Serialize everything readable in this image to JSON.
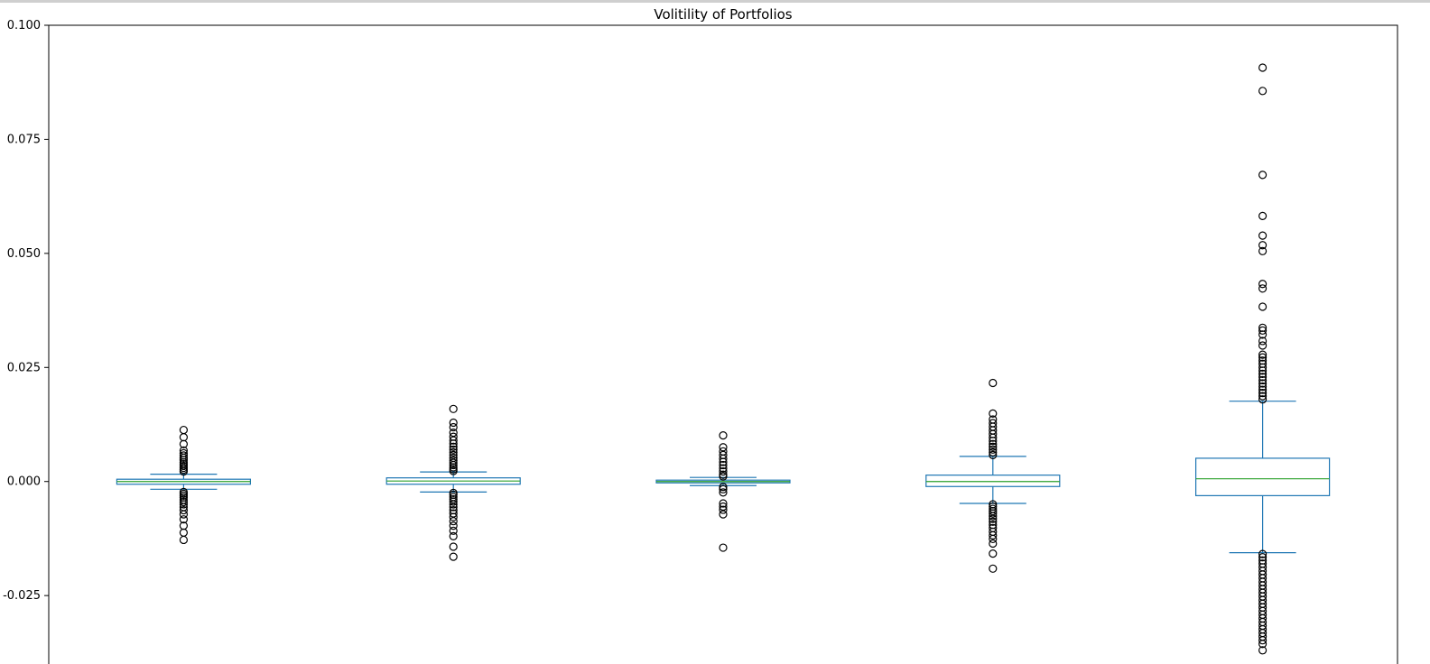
{
  "chart_data": {
    "type": "box",
    "title": "Volitility of Portfolios",
    "xlabel": "",
    "ylabel": "",
    "ylim": [
      -0.04,
      0.1
    ],
    "yticks": [
      {
        "value": 0.1,
        "label": "0.100"
      },
      {
        "value": 0.075,
        "label": "0.075"
      },
      {
        "value": 0.05,
        "label": "0.050"
      },
      {
        "value": 0.025,
        "label": "0.025"
      },
      {
        "value": 0.0,
        "label": "0.000"
      },
      {
        "value": -0.025,
        "label": "-0.025"
      }
    ],
    "grid": false,
    "colors": {
      "box": "#1f77b4",
      "median": "#2ca02c",
      "flier": "#000000",
      "axis": "#000000"
    },
    "boxes": [
      {
        "q1": -0.0006,
        "median": 0.0,
        "q3": 0.0005,
        "whisker_low": -0.0017,
        "whisker_high": 0.0016,
        "outliers": [
          0.0113,
          0.0097,
          0.0082,
          0.0068,
          0.0062,
          0.0057,
          0.0052,
          0.0047,
          0.0042,
          0.0038,
          0.0034,
          0.003,
          0.0026,
          0.0022,
          -0.0023,
          -0.0027,
          -0.0031,
          -0.0035,
          -0.004,
          -0.0045,
          -0.005,
          -0.0056,
          -0.0063,
          -0.0072,
          -0.0083,
          -0.0097,
          -0.0112,
          -0.0128
        ]
      },
      {
        "q1": -0.0006,
        "median": 0.0001,
        "q3": 0.0008,
        "whisker_low": -0.0023,
        "whisker_high": 0.0021,
        "outliers": [
          0.0159,
          0.0129,
          0.0119,
          0.0107,
          0.0098,
          0.009,
          0.0083,
          0.0076,
          0.007,
          0.0064,
          0.0058,
          0.0052,
          0.0046,
          0.0041,
          0.0036,
          0.0031,
          0.0027,
          0.0023,
          -0.0025,
          -0.0029,
          -0.0034,
          -0.0039,
          -0.0044,
          -0.005,
          -0.0056,
          -0.0063,
          -0.007,
          -0.0078,
          -0.0087,
          -0.0097,
          -0.0108,
          -0.012,
          -0.0143,
          -0.0165
        ]
      },
      {
        "q1": -0.0003,
        "median": 0.0,
        "q3": 0.0003,
        "whisker_low": -0.0009,
        "whisker_high": 0.0009,
        "outliers": [
          0.0101,
          0.0075,
          0.0066,
          0.0058,
          0.005,
          0.0043,
          0.0036,
          0.0029,
          0.0022,
          0.0015,
          0.0011,
          -0.0012,
          -0.0017,
          -0.0024,
          -0.0048,
          -0.0055,
          -0.0062,
          -0.0072,
          -0.0145
        ]
      },
      {
        "q1": -0.0011,
        "median": 0.0,
        "q3": 0.0014,
        "whisker_low": -0.0048,
        "whisker_high": 0.0055,
        "outliers": [
          0.0216,
          0.0149,
          0.0136,
          0.0128,
          0.012,
          0.0112,
          0.0104,
          0.0096,
          0.0089,
          0.0082,
          0.0076,
          0.007,
          0.0064,
          0.0058,
          -0.005,
          -0.0055,
          -0.006,
          -0.0065,
          -0.007,
          -0.0076,
          -0.0082,
          -0.0088,
          -0.0095,
          -0.0102,
          -0.011,
          -0.0118,
          -0.0126,
          -0.0136,
          -0.0158,
          -0.0191
        ]
      },
      {
        "q1": -0.0031,
        "median": 0.0006,
        "q3": 0.0051,
        "whisker_low": -0.0156,
        "whisker_high": 0.0176,
        "outliers": [
          0.0907,
          0.0856,
          0.0672,
          0.0582,
          0.0539,
          0.0518,
          0.0505,
          0.0433,
          0.0423,
          0.0383,
          0.0337,
          0.0331,
          0.0322,
          0.0308,
          0.0298,
          0.0278,
          0.0272,
          0.0265,
          0.0258,
          0.025,
          0.0243,
          0.0236,
          0.0229,
          0.0222,
          0.0215,
          0.0208,
          0.0201,
          0.0194,
          0.0187,
          0.018,
          -0.0159,
          -0.0166,
          -0.0173,
          -0.018,
          -0.0188,
          -0.0196,
          -0.0204,
          -0.0212,
          -0.022,
          -0.0228,
          -0.0236,
          -0.0244,
          -0.0252,
          -0.026,
          -0.0268,
          -0.0276,
          -0.0284,
          -0.0292,
          -0.03,
          -0.0308,
          -0.0316,
          -0.0324,
          -0.0332,
          -0.034,
          -0.0348,
          -0.0356,
          -0.037
        ]
      }
    ]
  }
}
